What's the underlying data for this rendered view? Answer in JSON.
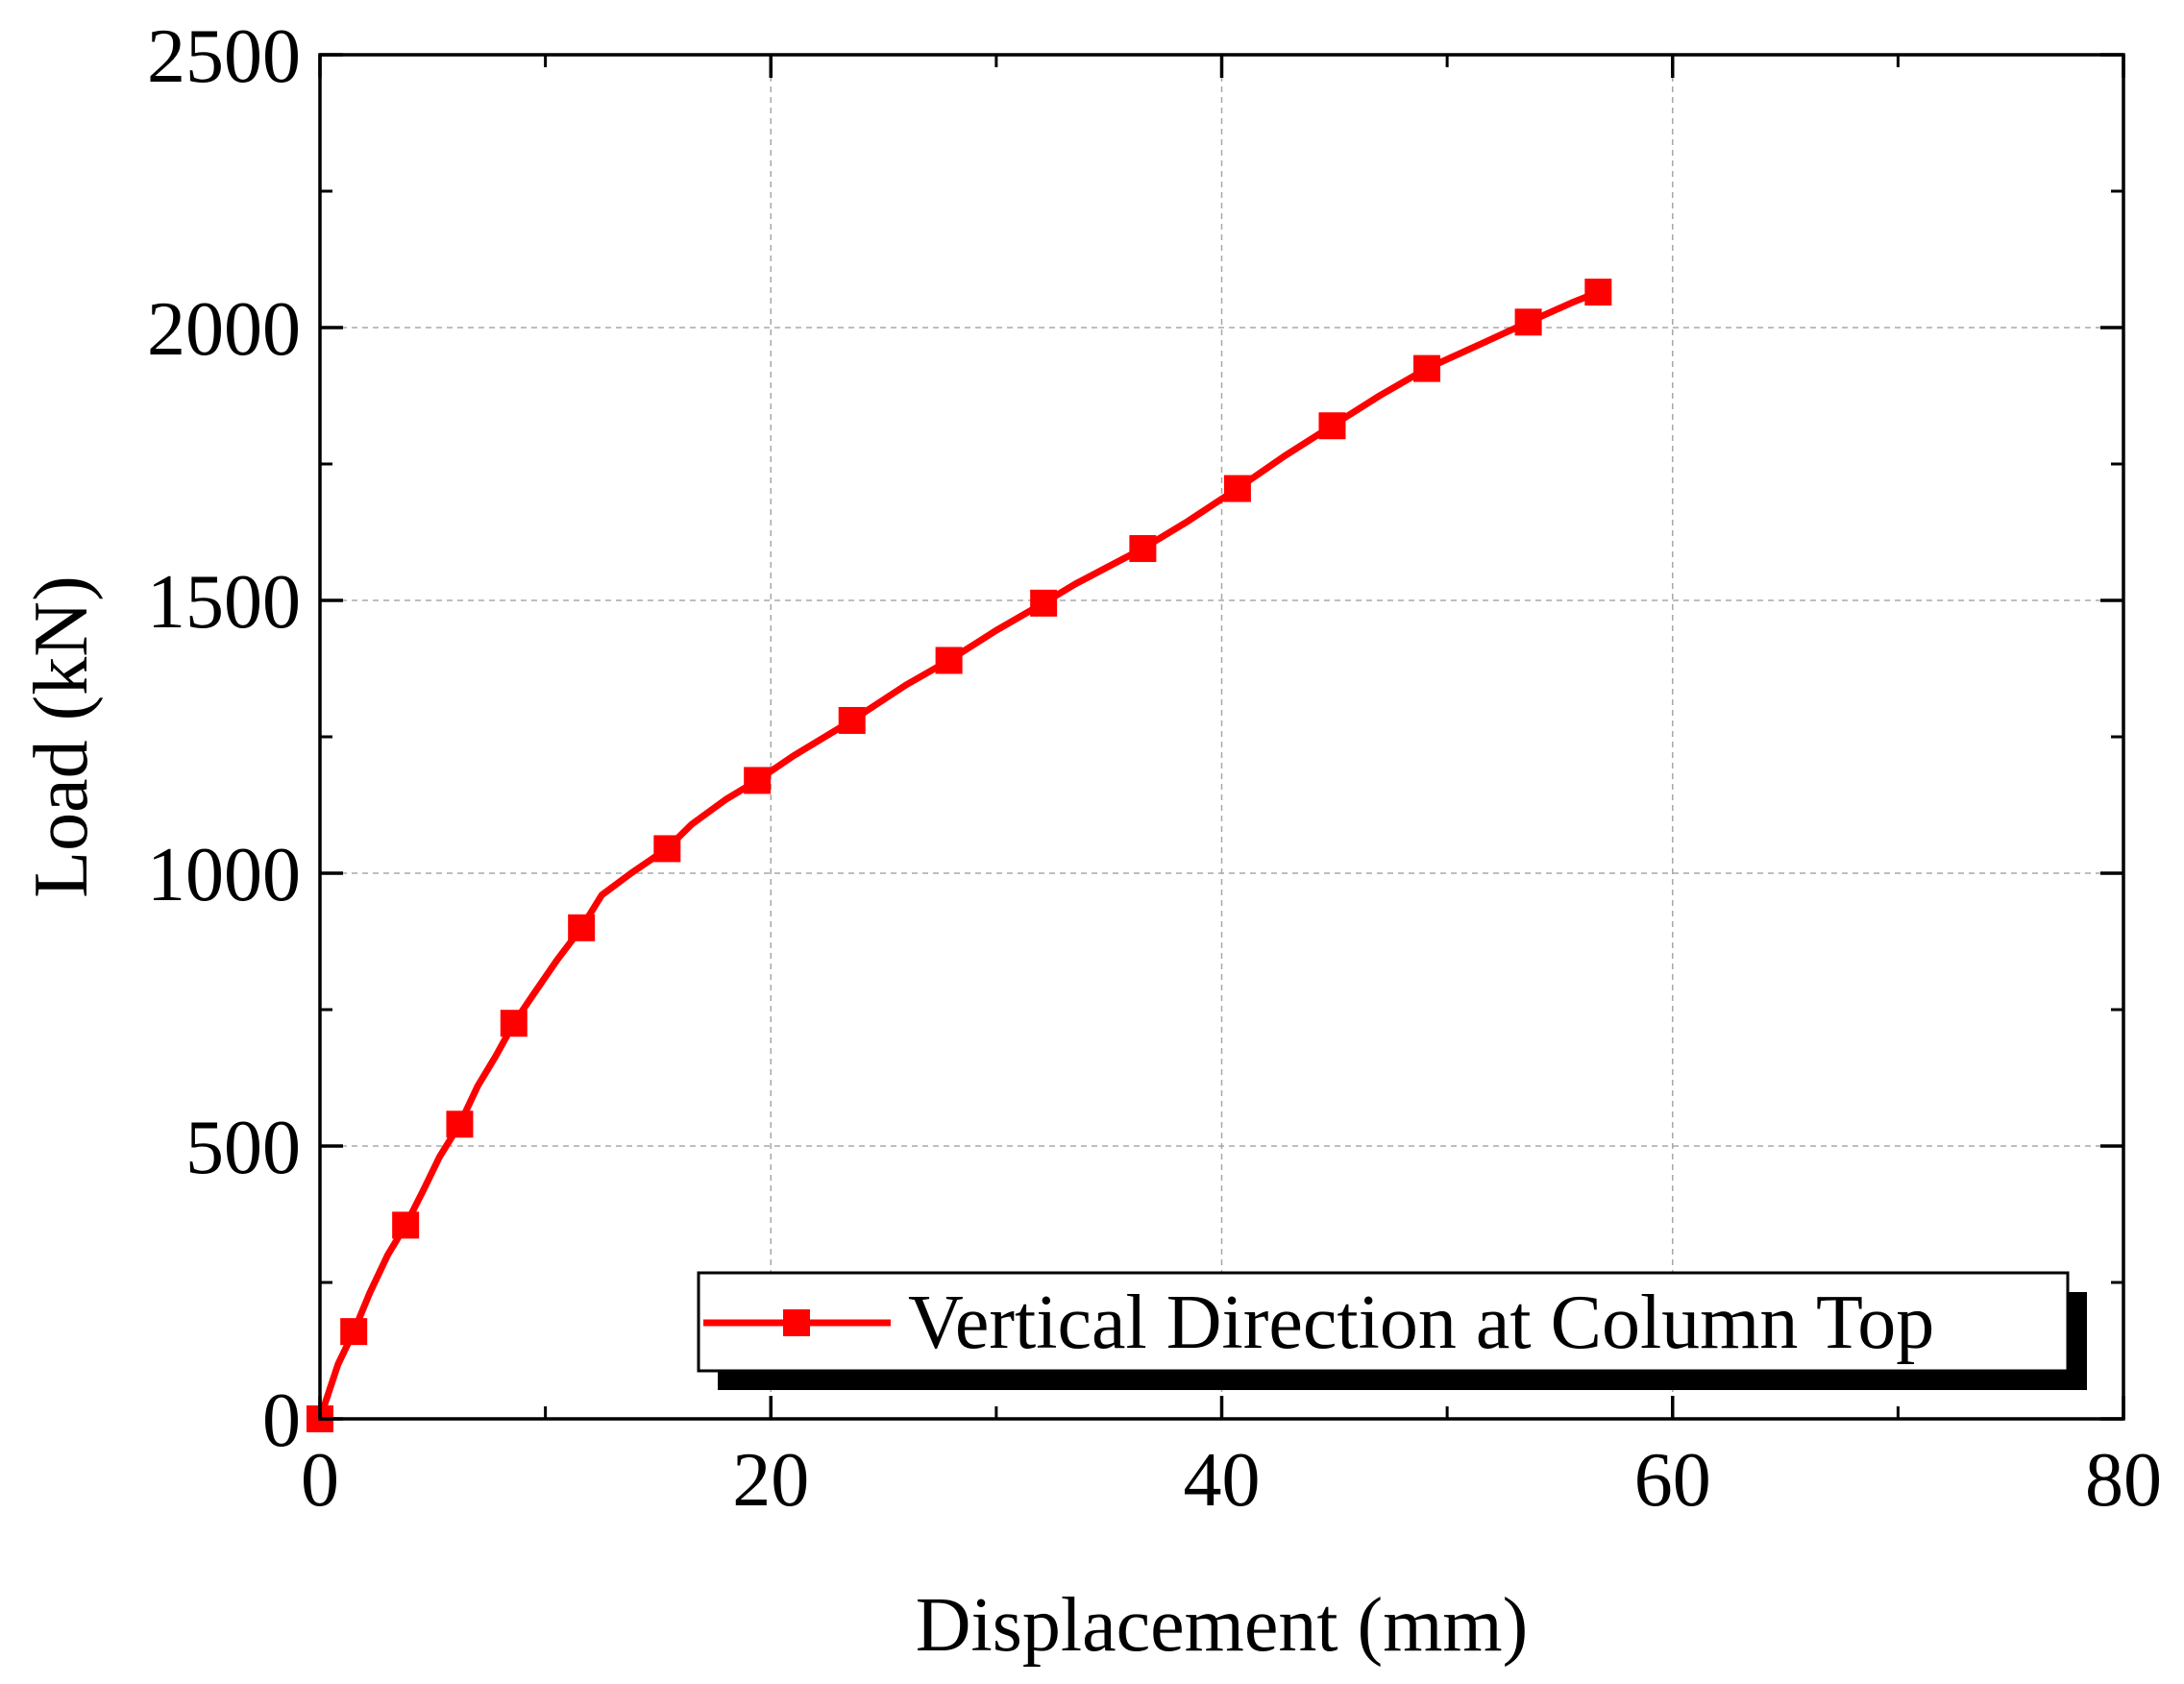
{
  "chart_data": {
    "type": "line",
    "title": "",
    "xlabel": "Displacement (mm)",
    "ylabel": "Load (kN)",
    "xlim": [
      0,
      80
    ],
    "ylim": [
      0,
      2500
    ],
    "xticks": [
      0,
      20,
      40,
      60,
      80
    ],
    "yticks": [
      0,
      500,
      1000,
      1500,
      2000,
      2500
    ],
    "xtick_labels": [
      "0",
      "20",
      "40",
      "60",
      "80"
    ],
    "ytick_labels": [
      "0",
      "500",
      "1000",
      "1500",
      "2000",
      "2500"
    ],
    "grid": true,
    "legend_position": "bottom-right",
    "series": [
      {
        "name": "Vertical Direction at Column Top",
        "color": "#ff0000",
        "marker": "square",
        "line_x": [
          0,
          0.8,
          1.5,
          2.2,
          3.0,
          3.8,
          4.6,
          5.3,
          6.2,
          7.0,
          7.8,
          8.6,
          9.5,
          10.5,
          11.6,
          12.5,
          13.8,
          15.4,
          16.5,
          18.0,
          19.4,
          21.0,
          23.6,
          26.0,
          27.9,
          30.0,
          32.1,
          33.5,
          36.5,
          38.5,
          40.7,
          42.8,
          44.9,
          47.0,
          49.1,
          51.5,
          53.6,
          55.5,
          56.7
        ],
        "line_y": [
          0,
          100,
          160,
          230,
          300,
          355,
          420,
          480,
          540,
          610,
          665,
          725,
          780,
          840,
          900,
          960,
          1000,
          1045,
          1090,
          1135,
          1170,
          1215,
          1280,
          1345,
          1390,
          1445,
          1495,
          1530,
          1595,
          1645,
          1705,
          1765,
          1820,
          1875,
          1925,
          1970,
          2010,
          2045,
          2065
        ],
        "marker_x": [
          0,
          1.5,
          3.8,
          6.2,
          8.6,
          11.6,
          15.4,
          19.4,
          23.6,
          27.9,
          32.1,
          36.5,
          40.7,
          44.9,
          49.1,
          53.6,
          56.7
        ],
        "marker_y": [
          0,
          160,
          355,
          540,
          725,
          900,
          1045,
          1170,
          1280,
          1390,
          1495,
          1595,
          1705,
          1820,
          1925,
          2010,
          2065
        ]
      }
    ]
  }
}
